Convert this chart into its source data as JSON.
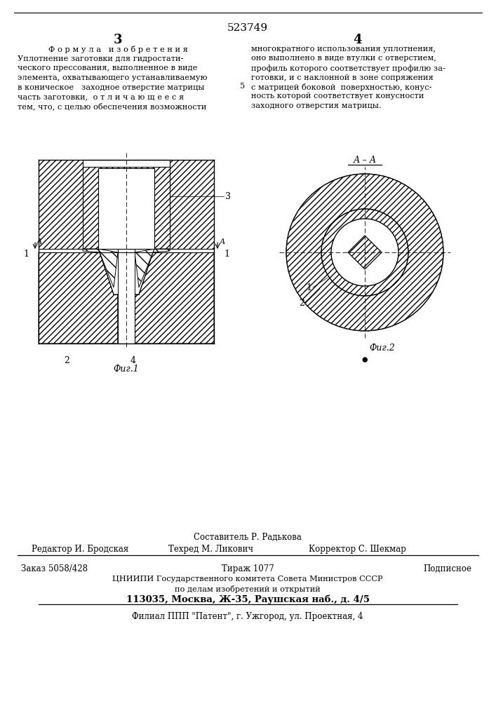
{
  "patent_number": "523749",
  "page_left": "3",
  "page_right": "4",
  "formula_title": "Ф о р м у л а   и з о б р е т е н и я",
  "left_text": [
    "Уплотнение заготовки для гидростати-",
    "ческого прессования, выполненное в виде",
    "элемента, охватывающего устанавливаемую",
    "в коническое   заходное отверстие матрицы",
    "часть заготовки,  о т л и ч а ю щ е е с я",
    "тем, что, с целью обеспечения возможности"
  ],
  "right_text": [
    "многократного использования уплотнения,",
    "оно выполнено в виде втулки с отверстием,",
    "профиль которого соответствует профилю за-",
    "готовки, и с наклонной в зоне сопряжения",
    "с матрицей боковой  поверхностью, конус-",
    "ность которой соответствует конусности",
    "заходного отверстия матрицы."
  ],
  "right_text_num": "5",
  "fig1_caption": "Фиг.1",
  "fig2_caption": "Фиг.2",
  "footer_compiler": "Составитель Р. Радькова",
  "footer_editor": "Редактор И. Бродская",
  "footer_techred": "Техред М. Ликович",
  "footer_corrector": "Корректор С. Шекмар",
  "footer_order": "Заказ 5058/428",
  "footer_tirazh": "Тираж 1077",
  "footer_podpisnoe": "Подписное",
  "footer_cniip1": "ЦНИИПИ Государственного комитета Совета Министров СССР",
  "footer_cniip2": "по делам изобретений и открытий",
  "footer_cniip3": "113035, Москва, Ж-35, Раушская наб., д. 4/5",
  "footer_filial": "Филиал ППП \"Патент\", г. Ужгород, ул. Проектная, 4",
  "bg_color": "#ffffff",
  "text_color": "#000000"
}
